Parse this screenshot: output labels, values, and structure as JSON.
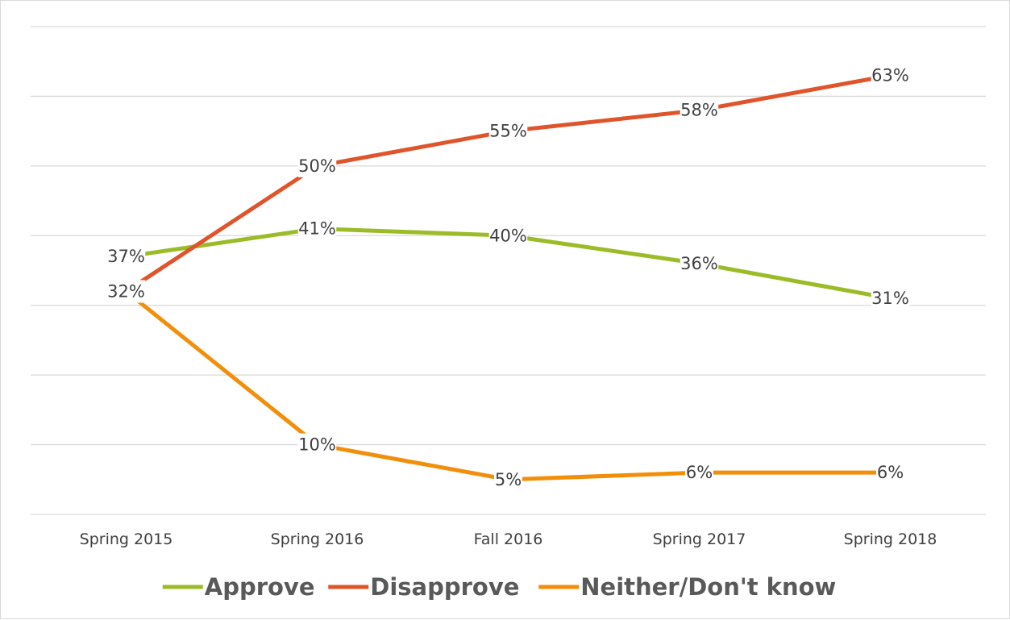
{
  "chart_data": {
    "type": "line",
    "title": "",
    "xlabel": "",
    "ylabel": "",
    "categories": [
      "Spring 2015",
      "Spring 2016",
      "Fall 2016",
      "Spring 2017",
      "Spring 2018"
    ],
    "ylim": [
      0,
      70
    ],
    "grid": true,
    "legend_position": "bottom",
    "series": [
      {
        "name": "Approve",
        "color": "#9bbb27",
        "values": [
          37,
          41,
          40,
          36,
          31
        ],
        "labels": [
          "37%",
          "41%",
          "40%",
          "36%",
          "31%"
        ]
      },
      {
        "name": "Disapprove",
        "color": "#e0542b",
        "values": [
          32,
          50,
          55,
          58,
          63
        ],
        "labels": [
          "32%",
          "50%",
          "55%",
          "58%",
          "63%"
        ]
      },
      {
        "name": "Neither/Don't know",
        "color": "#f28f0a",
        "values": [
          32,
          10,
          5,
          6,
          6
        ],
        "labels": [
          "",
          "10%",
          "5%",
          "6%",
          "6%"
        ]
      }
    ]
  }
}
